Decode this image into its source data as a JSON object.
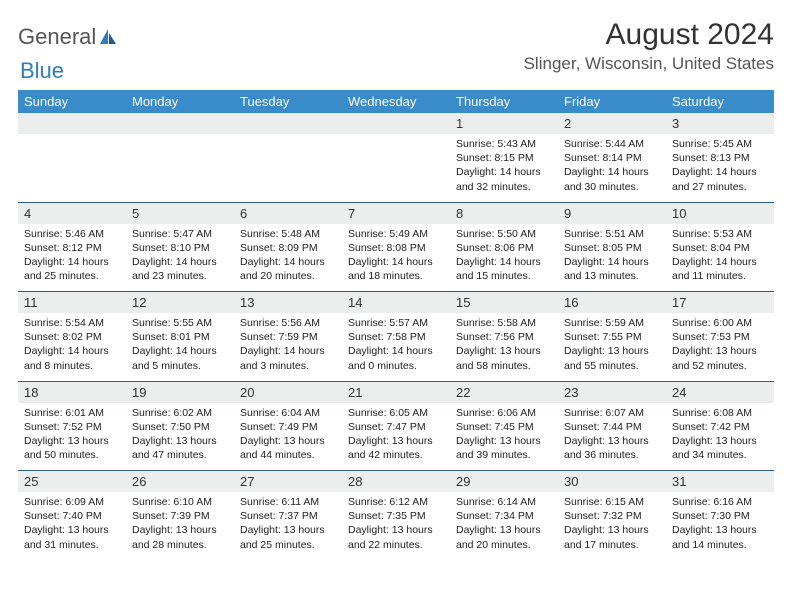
{
  "logo": {
    "text1": "General",
    "text2": "Blue"
  },
  "title": "August 2024",
  "location": "Slinger, Wisconsin, United States",
  "colors": {
    "header_bg": "#3a8bc9",
    "daynum_bg": "#eceded",
    "row_divider": "#2e5f8a",
    "logo_blue": "#2f7cbf"
  },
  "weekdays": [
    "Sunday",
    "Monday",
    "Tuesday",
    "Wednesday",
    "Thursday",
    "Friday",
    "Saturday"
  ],
  "weeks": [
    [
      {
        "n": "",
        "sr": "",
        "ss": "",
        "dl": ""
      },
      {
        "n": "",
        "sr": "",
        "ss": "",
        "dl": ""
      },
      {
        "n": "",
        "sr": "",
        "ss": "",
        "dl": ""
      },
      {
        "n": "",
        "sr": "",
        "ss": "",
        "dl": ""
      },
      {
        "n": "1",
        "sr": "Sunrise: 5:43 AM",
        "ss": "Sunset: 8:15 PM",
        "dl": "Daylight: 14 hours and 32 minutes."
      },
      {
        "n": "2",
        "sr": "Sunrise: 5:44 AM",
        "ss": "Sunset: 8:14 PM",
        "dl": "Daylight: 14 hours and 30 minutes."
      },
      {
        "n": "3",
        "sr": "Sunrise: 5:45 AM",
        "ss": "Sunset: 8:13 PM",
        "dl": "Daylight: 14 hours and 27 minutes."
      }
    ],
    [
      {
        "n": "4",
        "sr": "Sunrise: 5:46 AM",
        "ss": "Sunset: 8:12 PM",
        "dl": "Daylight: 14 hours and 25 minutes."
      },
      {
        "n": "5",
        "sr": "Sunrise: 5:47 AM",
        "ss": "Sunset: 8:10 PM",
        "dl": "Daylight: 14 hours and 23 minutes."
      },
      {
        "n": "6",
        "sr": "Sunrise: 5:48 AM",
        "ss": "Sunset: 8:09 PM",
        "dl": "Daylight: 14 hours and 20 minutes."
      },
      {
        "n": "7",
        "sr": "Sunrise: 5:49 AM",
        "ss": "Sunset: 8:08 PM",
        "dl": "Daylight: 14 hours and 18 minutes."
      },
      {
        "n": "8",
        "sr": "Sunrise: 5:50 AM",
        "ss": "Sunset: 8:06 PM",
        "dl": "Daylight: 14 hours and 15 minutes."
      },
      {
        "n": "9",
        "sr": "Sunrise: 5:51 AM",
        "ss": "Sunset: 8:05 PM",
        "dl": "Daylight: 14 hours and 13 minutes."
      },
      {
        "n": "10",
        "sr": "Sunrise: 5:53 AM",
        "ss": "Sunset: 8:04 PM",
        "dl": "Daylight: 14 hours and 11 minutes."
      }
    ],
    [
      {
        "n": "11",
        "sr": "Sunrise: 5:54 AM",
        "ss": "Sunset: 8:02 PM",
        "dl": "Daylight: 14 hours and 8 minutes."
      },
      {
        "n": "12",
        "sr": "Sunrise: 5:55 AM",
        "ss": "Sunset: 8:01 PM",
        "dl": "Daylight: 14 hours and 5 minutes."
      },
      {
        "n": "13",
        "sr": "Sunrise: 5:56 AM",
        "ss": "Sunset: 7:59 PM",
        "dl": "Daylight: 14 hours and 3 minutes."
      },
      {
        "n": "14",
        "sr": "Sunrise: 5:57 AM",
        "ss": "Sunset: 7:58 PM",
        "dl": "Daylight: 14 hours and 0 minutes."
      },
      {
        "n": "15",
        "sr": "Sunrise: 5:58 AM",
        "ss": "Sunset: 7:56 PM",
        "dl": "Daylight: 13 hours and 58 minutes."
      },
      {
        "n": "16",
        "sr": "Sunrise: 5:59 AM",
        "ss": "Sunset: 7:55 PM",
        "dl": "Daylight: 13 hours and 55 minutes."
      },
      {
        "n": "17",
        "sr": "Sunrise: 6:00 AM",
        "ss": "Sunset: 7:53 PM",
        "dl": "Daylight: 13 hours and 52 minutes."
      }
    ],
    [
      {
        "n": "18",
        "sr": "Sunrise: 6:01 AM",
        "ss": "Sunset: 7:52 PM",
        "dl": "Daylight: 13 hours and 50 minutes."
      },
      {
        "n": "19",
        "sr": "Sunrise: 6:02 AM",
        "ss": "Sunset: 7:50 PM",
        "dl": "Daylight: 13 hours and 47 minutes."
      },
      {
        "n": "20",
        "sr": "Sunrise: 6:04 AM",
        "ss": "Sunset: 7:49 PM",
        "dl": "Daylight: 13 hours and 44 minutes."
      },
      {
        "n": "21",
        "sr": "Sunrise: 6:05 AM",
        "ss": "Sunset: 7:47 PM",
        "dl": "Daylight: 13 hours and 42 minutes."
      },
      {
        "n": "22",
        "sr": "Sunrise: 6:06 AM",
        "ss": "Sunset: 7:45 PM",
        "dl": "Daylight: 13 hours and 39 minutes."
      },
      {
        "n": "23",
        "sr": "Sunrise: 6:07 AM",
        "ss": "Sunset: 7:44 PM",
        "dl": "Daylight: 13 hours and 36 minutes."
      },
      {
        "n": "24",
        "sr": "Sunrise: 6:08 AM",
        "ss": "Sunset: 7:42 PM",
        "dl": "Daylight: 13 hours and 34 minutes."
      }
    ],
    [
      {
        "n": "25",
        "sr": "Sunrise: 6:09 AM",
        "ss": "Sunset: 7:40 PM",
        "dl": "Daylight: 13 hours and 31 minutes."
      },
      {
        "n": "26",
        "sr": "Sunrise: 6:10 AM",
        "ss": "Sunset: 7:39 PM",
        "dl": "Daylight: 13 hours and 28 minutes."
      },
      {
        "n": "27",
        "sr": "Sunrise: 6:11 AM",
        "ss": "Sunset: 7:37 PM",
        "dl": "Daylight: 13 hours and 25 minutes."
      },
      {
        "n": "28",
        "sr": "Sunrise: 6:12 AM",
        "ss": "Sunset: 7:35 PM",
        "dl": "Daylight: 13 hours and 22 minutes."
      },
      {
        "n": "29",
        "sr": "Sunrise: 6:14 AM",
        "ss": "Sunset: 7:34 PM",
        "dl": "Daylight: 13 hours and 20 minutes."
      },
      {
        "n": "30",
        "sr": "Sunrise: 6:15 AM",
        "ss": "Sunset: 7:32 PM",
        "dl": "Daylight: 13 hours and 17 minutes."
      },
      {
        "n": "31",
        "sr": "Sunrise: 6:16 AM",
        "ss": "Sunset: 7:30 PM",
        "dl": "Daylight: 13 hours and 14 minutes."
      }
    ]
  ]
}
